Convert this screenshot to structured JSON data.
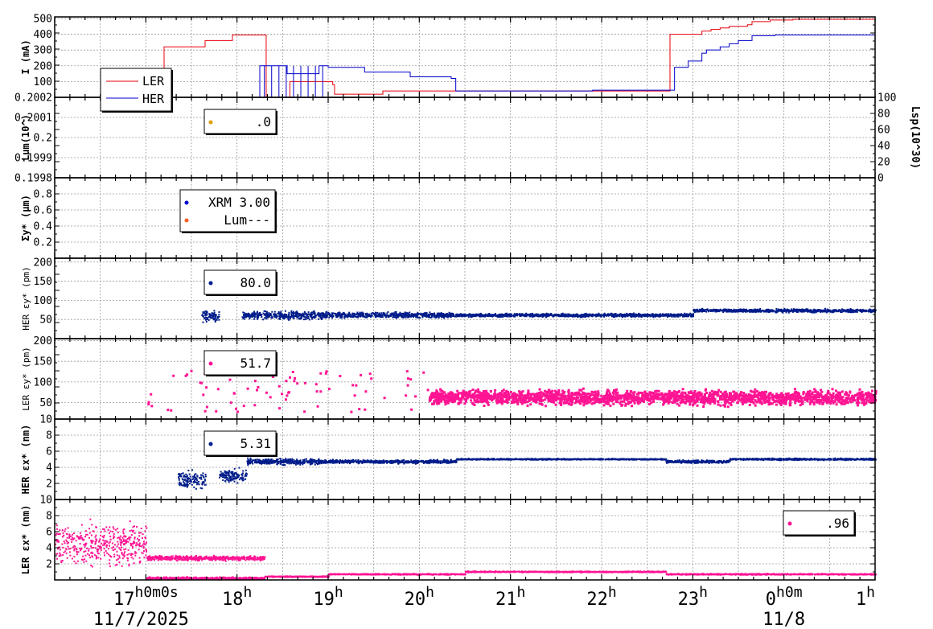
{
  "x_axis": {
    "ticks": [
      {
        "main": "17",
        "sup": "h0m0s"
      },
      {
        "main": "18",
        "sup": "h"
      },
      {
        "main": "19",
        "sup": "h"
      },
      {
        "main": "20",
        "sup": "h"
      },
      {
        "main": "21",
        "sup": "h"
      },
      {
        "main": "22",
        "sup": "h"
      },
      {
        "main": "23",
        "sup": "h"
      },
      {
        "main": "0",
        "sup": "h0m"
      },
      {
        "main": "1",
        "sup": "h"
      }
    ],
    "date_left": "11/7/2025",
    "date_right": "11/8"
  },
  "colors": {
    "ler": "#e8000b",
    "her": "#0000cc",
    "navy": "#001c8a",
    "pink": "#ff1493",
    "lum_dot": "#e0a000",
    "lum_dash": "#ff6020",
    "grid": "#9a9a9a",
    "axis": "#000000"
  },
  "chart_data": [
    {
      "type": "line",
      "panel": "current",
      "ylabel": "I (mA)",
      "yticks": [
        "500",
        "400",
        "300",
        "200",
        "100"
      ],
      "ylim": [
        0,
        510
      ],
      "x_range_hours": [
        16.0,
        25.0
      ],
      "legend": [
        "LER",
        "HER"
      ],
      "legend_placement": "top-left",
      "series": [
        {
          "name": "LER",
          "color": "#e8000b",
          "x": [
            16.0,
            17.05,
            17.2,
            17.22,
            17.6,
            17.65,
            17.9,
            17.95,
            18.3,
            18.32,
            18.58,
            18.62,
            19.05,
            19.07,
            19.55,
            19.6,
            20.4,
            20.5,
            21.2,
            21.5,
            22.7,
            22.75,
            22.85,
            23.05,
            23.1,
            23.2,
            23.3,
            23.4,
            23.6,
            23.65,
            23.8,
            23.85,
            24.0,
            24.1,
            25.0
          ],
          "y": [
            0,
            0,
            320,
            320,
            320,
            360,
            360,
            395,
            395,
            0,
            100,
            100,
            80,
            20,
            20,
            40,
            40,
            40,
            40,
            40,
            40,
            400,
            400,
            400,
            420,
            430,
            440,
            450,
            460,
            480,
            480,
            490,
            490,
            495,
            495
          ]
        },
        {
          "name": "HER",
          "color": "#0000cc",
          "x": [
            16.0,
            18.2,
            18.25,
            18.5,
            18.55,
            18.9,
            19.0,
            19.4,
            19.9,
            20.35,
            20.4,
            20.6,
            21.2,
            21.9,
            22.2,
            22.7,
            22.8,
            22.85,
            22.95,
            23.1,
            23.15,
            23.3,
            23.4,
            23.5,
            23.65,
            23.9,
            24.1,
            25.0
          ],
          "y": [
            0,
            0,
            200,
            200,
            150,
            200,
            190,
            160,
            130,
            120,
            40,
            40,
            40,
            45,
            45,
            45,
            190,
            190,
            230,
            280,
            300,
            320,
            340,
            360,
            390,
            395,
            395,
            395
          ]
        }
      ]
    },
    {
      "type": "line",
      "panel": "luminosity",
      "ylabel": "Lum(10^)",
      "yticks": [
        "0.2002",
        "0.2001",
        "0.2",
        "0.1999",
        "0.1998"
      ],
      "ylim": [
        0.1998,
        0.2002
      ],
      "y2label": "Lsp(10^30)",
      "y2ticks": [
        "100",
        "80",
        "60",
        "40",
        "20",
        "0"
      ],
      "y2lim": [
        0,
        100
      ],
      "legend": [
        {
          "marker_color": "#e0a000",
          "value": ".0"
        }
      ],
      "series": []
    },
    {
      "type": "scatter",
      "panel": "sigma_y",
      "ylabel": "Σy* (μm)",
      "yticks": [
        "0.8",
        "0.6",
        "0.4",
        "0.2"
      ],
      "ylim": [
        0,
        1.0
      ],
      "legend": [
        {
          "marker_color": "#0000cc",
          "value": "XRM 3.00"
        },
        {
          "marker_color": "#ff6020",
          "value": "Lum---"
        }
      ],
      "series": []
    },
    {
      "type": "scatter",
      "panel": "her_eps_y",
      "ylabel": "HER εy* (pm)",
      "yticks": [
        "200",
        "150",
        "100",
        "50"
      ],
      "ylim": [
        0,
        210
      ],
      "legend": [
        {
          "marker_color": "#001c8a",
          "value": "80.0"
        }
      ],
      "series": [
        {
          "color": "#001c8a",
          "segments": [
            {
              "x": [
                17.6,
                17.8
              ],
              "level": 60,
              "spread": 20
            },
            {
              "x": [
                18.05,
                19.0
              ],
              "level": 63,
              "spread": 14
            },
            {
              "x": [
                19.0,
                20.4
              ],
              "level": 63,
              "spread": 10
            },
            {
              "x": [
                20.4,
                22.0
              ],
              "level": 63,
              "spread": 6
            },
            {
              "x": [
                22.0,
                23.0
              ],
              "level": 63,
              "spread": 6
            },
            {
              "x": [
                23.0,
                25.0
              ],
              "level": 75,
              "spread": 6
            }
          ]
        }
      ]
    },
    {
      "type": "scatter",
      "panel": "ler_eps_y",
      "ylabel": "LER εy* (pm)",
      "yticks": [
        "200",
        "150",
        "100",
        "50"
      ],
      "ylim": [
        10,
        205
      ],
      "legend": [
        {
          "marker_color": "#ff1493",
          "value": "51.7"
        }
      ],
      "series": [
        {
          "color": "#ff1493",
          "segments": [
            {
              "x": [
                17.0,
                20.1
              ],
              "level": 60,
              "spread": 40,
              "sparse": true
            },
            {
              "x": [
                20.1,
                25.0
              ],
              "level": 65,
              "spread": 25
            }
          ]
        }
      ]
    },
    {
      "type": "scatter",
      "panel": "her_eps_x",
      "ylabel": "HER εx* (nm)",
      "yticks": [
        "10",
        "8",
        "6",
        "4",
        "2"
      ],
      "ylim": [
        0,
        10
      ],
      "legend": [
        {
          "marker_color": "#001c8a",
          "value": "5.31"
        }
      ],
      "series": [
        {
          "color": "#001c8a",
          "segments": [
            {
              "x": [
                17.35,
                17.65
              ],
              "level": 2.5,
              "spread": 1.5
            },
            {
              "x": [
                17.8,
                18.1
              ],
              "level": 3.0,
              "spread": 1.2
            },
            {
              "x": [
                18.1,
                18.9
              ],
              "level": 4.8,
              "spread": 0.5
            },
            {
              "x": [
                18.9,
                20.4
              ],
              "level": 4.8,
              "spread": 0.3
            },
            {
              "x": [
                20.4,
                22.7
              ],
              "level": 5.1,
              "spread": 0.1
            },
            {
              "x": [
                22.7,
                23.4
              ],
              "level": 4.8,
              "spread": 0.25
            },
            {
              "x": [
                23.4,
                25.0
              ],
              "level": 5.1,
              "spread": 0.15
            }
          ]
        }
      ]
    },
    {
      "type": "scatter",
      "panel": "ler_eps_x",
      "ylabel": "LER εx* (nm)",
      "yticks": [
        "10",
        "8",
        "6",
        "4",
        "2"
      ],
      "ylim": [
        0,
        10
      ],
      "legend": [
        {
          "marker_color": "#ff1493",
          "value": ".96"
        }
      ],
      "legend_placement": "right",
      "series": [
        {
          "color": "#ff1493",
          "segments": [
            {
              "x": [
                16.0,
                17.0
              ],
              "level": 4.5,
              "spread": 3.5
            },
            {
              "x": [
                17.0,
                18.3
              ],
              "level": 2.8,
              "spread": 0.4
            },
            {
              "x": [
                17.0,
                18.3
              ],
              "level": 0.3,
              "spread": 0.2
            },
            {
              "x": [
                18.3,
                19.0
              ],
              "level": 0.5,
              "spread": 0.1
            },
            {
              "x": [
                19.0,
                20.5
              ],
              "level": 0.8,
              "spread": 0.1
            },
            {
              "x": [
                20.5,
                22.7
              ],
              "level": 1.1,
              "spread": 0.1
            },
            {
              "x": [
                22.7,
                25.0
              ],
              "level": 0.8,
              "spread": 0.1
            }
          ]
        }
      ]
    }
  ]
}
